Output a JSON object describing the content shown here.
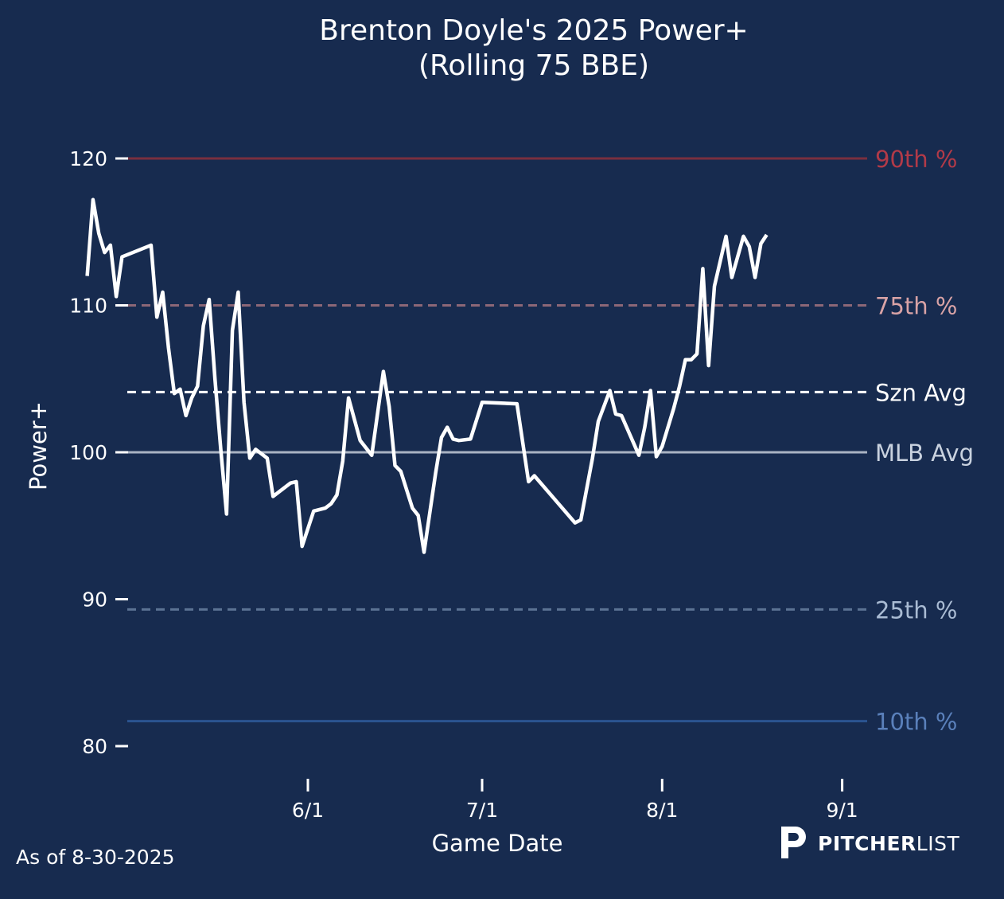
{
  "chart_data": {
    "type": "line",
    "title": "Brenton Doyle's 2025 Power+",
    "subtitle": "(Rolling 75 BBE)",
    "xlabel": "Game Date",
    "ylabel": "Power+",
    "ylim": [
      78,
      124
    ],
    "xlim": [
      "2025-04-01",
      "2025-09-04"
    ],
    "y_ticks": [
      80,
      90,
      100,
      110,
      120
    ],
    "x_ticks": [
      {
        "date": "2025-06-01",
        "label": "6/1"
      },
      {
        "date": "2025-07-01",
        "label": "7/1"
      },
      {
        "date": "2025-08-01",
        "label": "8/1"
      },
      {
        "date": "2025-09-01",
        "label": "9/1"
      }
    ],
    "grid": false,
    "reference_lines": [
      {
        "label": "90th %",
        "value": 120,
        "style": "solid",
        "color": "#7a2f3f",
        "label_color": "#b23a48"
      },
      {
        "label": "75th %",
        "value": 110,
        "style": "dashed",
        "color": "#8c6777",
        "label_color": "#d9a3a6"
      },
      {
        "label": "Szn Avg",
        "value": 104.1,
        "style": "dashed",
        "color": "#ffffff",
        "label_color": "#ffffff"
      },
      {
        "label": "MLB Avg",
        "value": 100,
        "style": "solid",
        "color": "#a9b3c3",
        "label_color": "#c9d2df"
      },
      {
        "label": "25th %",
        "value": 89.3,
        "style": "dashed",
        "color": "#5c7394",
        "label_color": "#a9bbd3"
      },
      {
        "label": "10th %",
        "value": 81.7,
        "style": "solid",
        "color": "#2b5490",
        "label_color": "#5a80bb"
      }
    ],
    "series": [
      {
        "color": "#ffffff",
        "points": [
          [
            "2025-04-24",
            112.0
          ],
          [
            "2025-04-25",
            117.2
          ],
          [
            "2025-04-26",
            114.9
          ],
          [
            "2025-04-27",
            113.6
          ],
          [
            "2025-04-28",
            114.1
          ],
          [
            "2025-04-29",
            110.6
          ],
          [
            "2025-04-30",
            113.3
          ],
          [
            "2025-05-05",
            114.1
          ],
          [
            "2025-05-06",
            109.2
          ],
          [
            "2025-05-07",
            110.9
          ],
          [
            "2025-05-08",
            107.1
          ],
          [
            "2025-05-09",
            104.0
          ],
          [
            "2025-05-10",
            104.3
          ],
          [
            "2025-05-11",
            102.5
          ],
          [
            "2025-05-12",
            103.7
          ],
          [
            "2025-05-13",
            104.5
          ],
          [
            "2025-05-14",
            108.6
          ],
          [
            "2025-05-15",
            110.4
          ],
          [
            "2025-05-16",
            105.0
          ],
          [
            "2025-05-17",
            100.2
          ],
          [
            "2025-05-18",
            95.8
          ],
          [
            "2025-05-19",
            108.3
          ],
          [
            "2025-05-20",
            110.9
          ],
          [
            "2025-05-21",
            103.4
          ],
          [
            "2025-05-22",
            99.6
          ],
          [
            "2025-05-23",
            100.2
          ],
          [
            "2025-05-25",
            99.6
          ],
          [
            "2025-05-26",
            97.0
          ],
          [
            "2025-05-29",
            97.9
          ],
          [
            "2025-05-30",
            98.0
          ],
          [
            "2025-05-31",
            93.6
          ],
          [
            "2025-06-02",
            96.0
          ],
          [
            "2025-06-04",
            96.2
          ],
          [
            "2025-06-05",
            96.5
          ],
          [
            "2025-06-06",
            97.1
          ],
          [
            "2025-06-07",
            99.4
          ],
          [
            "2025-06-08",
            103.7
          ],
          [
            "2025-06-10",
            100.8
          ],
          [
            "2025-06-12",
            99.8
          ],
          [
            "2025-06-14",
            105.5
          ],
          [
            "2025-06-15",
            103.1
          ],
          [
            "2025-06-16",
            99.1
          ],
          [
            "2025-06-17",
            98.7
          ],
          [
            "2025-06-19",
            96.2
          ],
          [
            "2025-06-20",
            95.7
          ],
          [
            "2025-06-21",
            93.2
          ],
          [
            "2025-06-23",
            98.6
          ],
          [
            "2025-06-24",
            101.0
          ],
          [
            "2025-06-25",
            101.7
          ],
          [
            "2025-06-26",
            100.9
          ],
          [
            "2025-06-27",
            100.8
          ],
          [
            "2025-06-29",
            100.9
          ],
          [
            "2025-07-01",
            103.4
          ],
          [
            "2025-07-07",
            103.3
          ],
          [
            "2025-07-09",
            98.0
          ],
          [
            "2025-07-10",
            98.4
          ],
          [
            "2025-07-17",
            95.2
          ],
          [
            "2025-07-18",
            95.4
          ],
          [
            "2025-07-20",
            99.6
          ],
          [
            "2025-07-21",
            102.1
          ],
          [
            "2025-07-23",
            104.2
          ],
          [
            "2025-07-24",
            102.6
          ],
          [
            "2025-07-25",
            102.5
          ],
          [
            "2025-07-28",
            99.8
          ],
          [
            "2025-07-29",
            101.7
          ],
          [
            "2025-07-30",
            104.2
          ],
          [
            "2025-07-31",
            99.7
          ],
          [
            "2025-08-01",
            100.4
          ],
          [
            "2025-08-03",
            103.0
          ],
          [
            "2025-08-04",
            104.5
          ],
          [
            "2025-08-05",
            106.3
          ],
          [
            "2025-08-06",
            106.3
          ],
          [
            "2025-08-07",
            106.7
          ],
          [
            "2025-08-08",
            112.5
          ],
          [
            "2025-08-09",
            105.9
          ],
          [
            "2025-08-10",
            111.3
          ],
          [
            "2025-08-12",
            114.7
          ],
          [
            "2025-08-13",
            111.9
          ],
          [
            "2025-08-15",
            114.7
          ],
          [
            "2025-08-16",
            114.0
          ],
          [
            "2025-08-17",
            111.9
          ],
          [
            "2025-08-18",
            114.2
          ],
          [
            "2025-08-19",
            114.8
          ]
        ]
      }
    ]
  },
  "footer": {
    "as_of": "As of 8-30-2025",
    "brand_bold": "PITCHER",
    "brand_light": "LIST"
  }
}
